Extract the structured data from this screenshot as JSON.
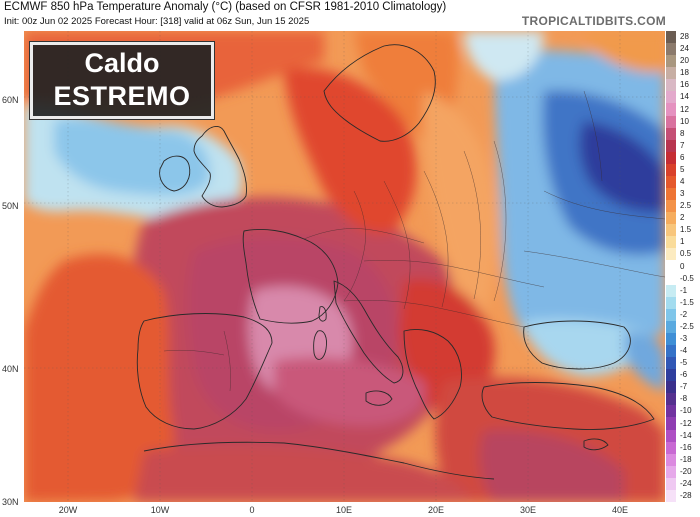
{
  "header": {
    "title": "ECMWF 850 hPa Temperature Anomaly (°C) (based on CFSR 1981-2010 Climatology)",
    "subtitle": "Init: 00z Jun 02 2025   Forecast Hour: [318]   valid at 06z Sun, Jun 15 2025",
    "brand": "TROPICALTIDBITS.COM"
  },
  "badge": {
    "line1": "Caldo",
    "line2": "ESTREMO"
  },
  "axes": {
    "lat_labels": [
      "60N",
      "50N",
      "40N",
      "30N"
    ],
    "lon_labels": [
      "20W",
      "10W",
      "0",
      "10E",
      "20E",
      "30E",
      "40E"
    ]
  },
  "colorbar": {
    "labels": [
      "28",
      "24",
      "20",
      "18",
      "16",
      "14",
      "12",
      "10",
      "8",
      "7",
      "6",
      "5",
      "4",
      "3",
      "2.5",
      "2",
      "1.5",
      "1",
      "0.5",
      "0",
      "-0.5",
      "-1",
      "-1.5",
      "-2",
      "-2.5",
      "-3",
      "-4",
      "-5",
      "-6",
      "-7",
      "-8",
      "-10",
      "-12",
      "-14",
      "-16",
      "-18",
      "-20",
      "-24",
      "-28"
    ],
    "colors": [
      "#6b5d53",
      "#8b7a6c",
      "#a9977f",
      "#c7aea3",
      "#d9b8c4",
      "#e3a9cc",
      "#e592c0",
      "#d9729f",
      "#c54f75",
      "#b8354f",
      "#c62d33",
      "#d9412b",
      "#e5582c",
      "#ee7434",
      "#f39248",
      "#f6ad5e",
      "#f8c67c",
      "#fadc9a",
      "#fcebc0",
      "#ffffff",
      "#ffffff",
      "#c7ecf3",
      "#a3dcef",
      "#7fc6ea",
      "#5aaae0",
      "#3f8fd6",
      "#3572c8",
      "#3157b6",
      "#2f3e9e",
      "#3a2f8c",
      "#55308f",
      "#7133a0",
      "#8f3db2",
      "#ae4fc4",
      "#c869d3",
      "#db8ae0",
      "#e6a9ea",
      "#efc9f2",
      "#f6e1f8"
    ]
  },
  "map": {
    "main_color": "#f4a060",
    "colors": {
      "warm_core": "#b74a6a",
      "hot_pink": "#d98aa8",
      "red": "#d8452c",
      "orange": "#f08a3e",
      "cool_blue": "#4d8ad6",
      "light_blue": "#a7d4ef",
      "land_border": "#2a2a2a"
    }
  }
}
